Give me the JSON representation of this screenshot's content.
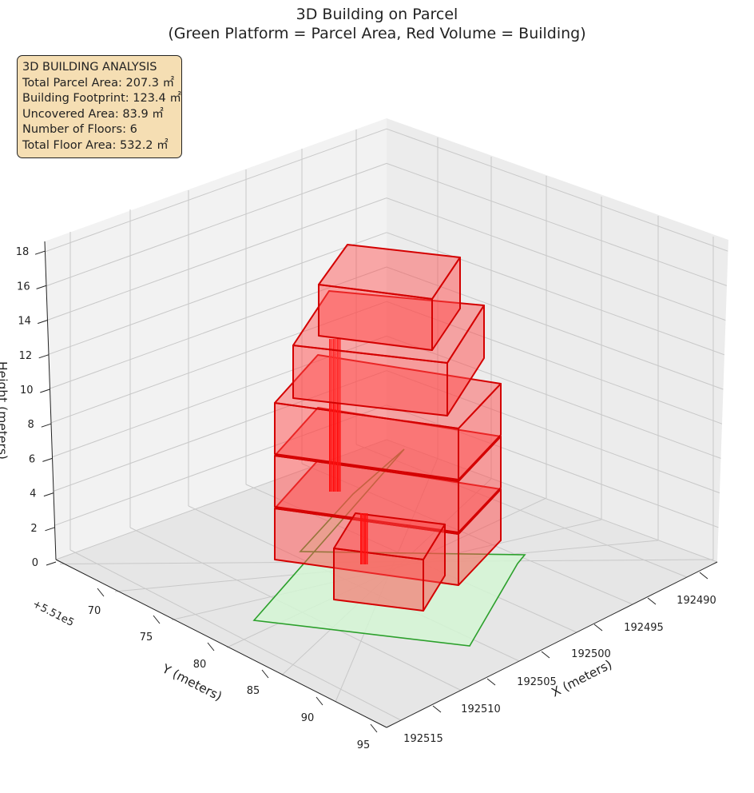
{
  "chart_data": {
    "type": "3d-bar",
    "title_line1": "3D Building on Parcel",
    "title_line2": "(Green Platform = Parcel Area, Red Volume = Building)",
    "xlabel": "X (meters)",
    "ylabel": "Y (meters)",
    "zlabel": "Height (meters)",
    "y_offset_label": "+5.51e5",
    "x_ticks": [
      "192490",
      "192495",
      "192500",
      "192505",
      "192510",
      "192515"
    ],
    "y_ticks": [
      "70",
      "75",
      "80",
      "85",
      "90",
      "95"
    ],
    "z_ticks": [
      "0",
      "2",
      "4",
      "6",
      "8",
      "10",
      "12",
      "14",
      "16",
      "18"
    ],
    "zlim": [
      0,
      18
    ],
    "floors": 6,
    "colors": {
      "parcel_fill": "#d4f5d4",
      "parcel_edge": "#2ca02c",
      "building_fill": "#ff4a4a",
      "building_edge": "#d40000",
      "stats_bg": "#f5deb3"
    }
  },
  "stats": {
    "heading": "3D BUILDING ANALYSIS",
    "parcel_area": "Total Parcel Area: 207.3 ㎡",
    "footprint": "Building Footprint: 123.4 ㎡",
    "uncovered": "Uncovered Area: 83.9 ㎡",
    "floors": "Number of Floors: 6",
    "floor_area": "Total Floor Area: 532.2 ㎡"
  }
}
